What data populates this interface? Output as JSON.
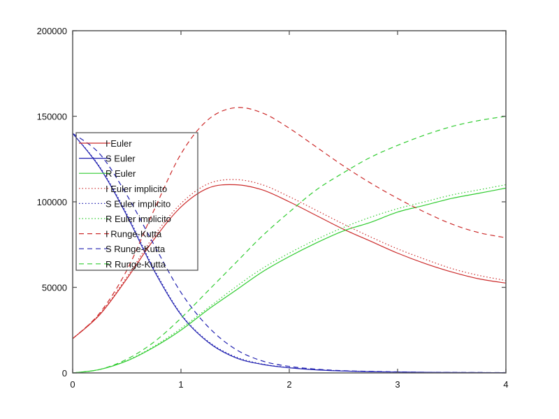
{
  "chart_data": {
    "type": "line",
    "title": "",
    "xlabel": "",
    "ylabel": "",
    "xlim": [
      0,
      4
    ],
    "ylim": [
      0,
      200000
    ],
    "xticks": [
      0,
      1,
      2,
      3,
      4
    ],
    "yticks": [
      0,
      50000,
      100000,
      150000,
      200000
    ],
    "grid": false,
    "legend_position": "upper-left",
    "x": [
      0,
      0.25,
      0.5,
      0.75,
      1.0,
      1.25,
      1.5,
      1.75,
      2.0,
      2.25,
      2.5,
      2.75,
      3.0,
      3.25,
      3.5,
      3.75,
      4.0
    ],
    "series": [
      {
        "name": "I Euler",
        "color": "#cc2a2a",
        "style": "solid",
        "values": [
          20000,
          34000,
          55000,
          78000,
          97000,
          108000,
          110000,
          107000,
          100000,
          92000,
          84000,
          77000,
          70000,
          64000,
          59000,
          55000,
          52500
        ]
      },
      {
        "name": "S Euler",
        "color": "#2020b0",
        "style": "solid",
        "values": [
          140000,
          120000,
          92000,
          60000,
          34000,
          18000,
          9000,
          5000,
          3000,
          1800,
          1100,
          700,
          500,
          350,
          250,
          200,
          150
        ]
      },
      {
        "name": "R Euler",
        "color": "#30cc30",
        "style": "solid",
        "values": [
          0,
          2000,
          7000,
          15000,
          25000,
          37000,
          48000,
          59000,
          68000,
          76000,
          83000,
          88000,
          94000,
          98000,
          102000,
          105000,
          108000
        ]
      },
      {
        "name": "I Euler implicito",
        "color": "#cc2a2a",
        "style": "dotted",
        "values": [
          20000,
          34500,
          56000,
          80000,
          99000,
          110500,
          113000,
          110000,
          103000,
          95000,
          87000,
          79500,
          72500,
          66500,
          61000,
          57000,
          54000
        ]
      },
      {
        "name": "S Euler implicito",
        "color": "#2020b0",
        "style": "dotted",
        "values": [
          140000,
          120500,
          93000,
          61000,
          34500,
          18500,
          9500,
          5200,
          3100,
          1900,
          1200,
          750,
          520,
          360,
          260,
          200,
          150
        ]
      },
      {
        "name": "R Euler implicito",
        "color": "#30cc30",
        "style": "dotted",
        "values": [
          0,
          2000,
          7200,
          15500,
          26000,
          38000,
          50000,
          61000,
          70000,
          78000,
          85000,
          91000,
          96000,
          100000,
          104000,
          107000,
          110000
        ]
      },
      {
        "name": "I Runge-Kutta",
        "color": "#cc2a2a",
        "style": "dashed",
        "values": [
          20000,
          35000,
          60000,
          95000,
          128000,
          148000,
          155000,
          152000,
          143000,
          132000,
          121000,
          111000,
          102000,
          94000,
          87000,
          82000,
          79000
        ]
      },
      {
        "name": "S Runge-Kutta",
        "color": "#2020b0",
        "style": "dashed",
        "values": [
          140000,
          128000,
          104000,
          75000,
          47000,
          27000,
          14000,
          7000,
          3800,
          2200,
          1300,
          900,
          600,
          400,
          300,
          250,
          200
        ]
      },
      {
        "name": "R Runge-Kutta",
        "color": "#30cc30",
        "style": "dashed",
        "values": [
          0,
          2000,
          8000,
          18000,
          32000,
          48000,
          64000,
          80000,
          94000,
          107000,
          117000,
          126000,
          133000,
          139000,
          144000,
          147500,
          150000
        ]
      }
    ]
  },
  "axes": {
    "x_tick_labels": [
      "0",
      "1",
      "2",
      "3",
      "4"
    ],
    "y_tick_labels": [
      "0",
      "50000",
      "100000",
      "150000",
      "200000"
    ]
  },
  "legend": {
    "entries": [
      "I Euler",
      "S Euler",
      "R Euler",
      "I Euler implicito",
      "S Euler implicito",
      "R Euler implicito",
      "I Runge-Kutta",
      "S Runge-Kutta",
      "R Runge-Kutta"
    ]
  }
}
